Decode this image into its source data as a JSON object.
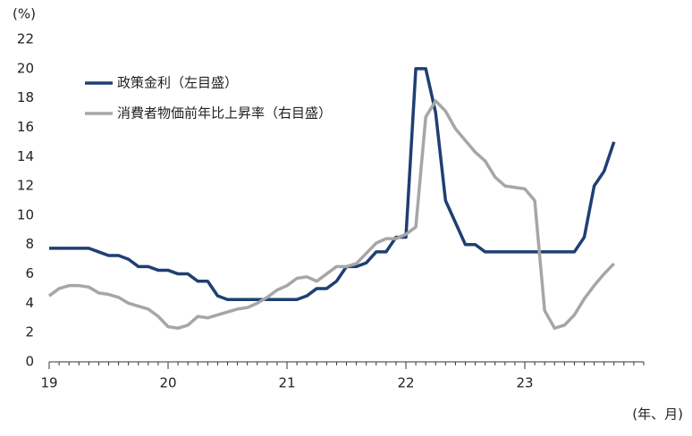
{
  "chart_data": {
    "type": "line",
    "y_unit_label": "(%)",
    "x_unit_label": "(年、月)",
    "x": [
      0,
      1,
      2,
      3,
      4,
      5,
      6,
      7,
      8,
      9,
      10,
      11,
      12,
      13,
      14,
      15,
      16,
      17,
      18,
      19,
      20,
      21,
      22,
      23,
      24,
      25,
      26,
      27,
      28,
      29,
      30,
      31,
      32,
      33,
      34,
      35,
      36,
      37,
      38,
      39,
      40,
      41,
      42,
      43,
      44,
      45,
      46,
      47,
      48,
      49,
      50,
      51,
      52,
      53,
      54,
      55,
      56,
      57
    ],
    "series": [
      {
        "name": "政策金利（左目盛）",
        "color": "#1f3f73",
        "values": [
          7.75,
          7.75,
          7.75,
          7.75,
          7.75,
          7.5,
          7.25,
          7.25,
          7.0,
          6.5,
          6.5,
          6.25,
          6.25,
          6.0,
          6.0,
          5.5,
          5.5,
          4.5,
          4.25,
          4.25,
          4.25,
          4.25,
          4.25,
          4.25,
          4.25,
          4.25,
          4.5,
          5.0,
          5.0,
          5.5,
          6.5,
          6.5,
          6.75,
          7.5,
          7.5,
          8.5,
          8.5,
          20,
          20,
          17,
          11,
          9.5,
          8,
          8,
          7.5,
          7.5,
          7.5,
          7.5,
          7.5,
          7.5,
          7.5,
          7.5,
          7.5,
          7.5,
          8.5,
          12,
          13,
          15
        ]
      },
      {
        "name": "消費者物価前年比上昇率（右目盛）",
        "color": "#a6a6a6",
        "values": [
          4.5,
          5.0,
          5.2,
          5.2,
          5.1,
          4.7,
          4.6,
          4.4,
          4.0,
          3.8,
          3.6,
          3.1,
          2.4,
          2.3,
          2.5,
          3.1,
          3.0,
          3.2,
          3.4,
          3.6,
          3.7,
          4.0,
          4.4,
          4.9,
          5.2,
          5.7,
          5.8,
          5.5,
          6.0,
          6.5,
          6.5,
          6.7,
          7.4,
          8.1,
          8.4,
          8.4,
          8.7,
          9.2,
          16.7,
          17.8,
          17.1,
          15.9,
          15.1,
          14.3,
          13.7,
          12.6,
          12.0,
          11.9,
          11.8,
          11.0,
          3.5,
          2.3,
          2.5,
          3.2,
          4.3,
          5.2,
          6.0,
          6.7
        ]
      }
    ],
    "xlim": [
      0,
      60
    ],
    "xticks": [
      {
        "value": 0,
        "label": "19"
      },
      {
        "value": 12,
        "label": "20"
      },
      {
        "value": 24,
        "label": "21"
      },
      {
        "value": 36,
        "label": "22"
      },
      {
        "value": 48,
        "label": "23"
      }
    ],
    "ylim": [
      0,
      22
    ],
    "yticks": [
      0,
      2,
      4,
      6,
      8,
      10,
      12,
      14,
      16,
      18,
      20,
      22
    ],
    "grid": false,
    "legend": "upper-left"
  }
}
